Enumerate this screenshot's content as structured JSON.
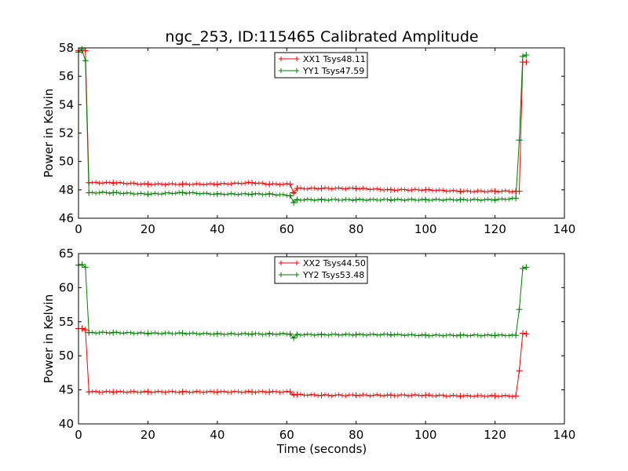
{
  "title": "ngc_253, ID:115465 Calibrated Amplitude",
  "xlabel": "Time (seconds)",
  "colors": {
    "xx": "#ff0000",
    "yy": "#008000"
  },
  "chart_data": [
    {
      "type": "line",
      "title": "ngc_253, ID:115465 Calibrated Amplitude",
      "xlabel": "",
      "ylabel": "Power in Kelvin",
      "xlim": [
        0,
        140
      ],
      "ylim": [
        46,
        58
      ],
      "xticks": [
        0,
        20,
        40,
        60,
        80,
        100,
        120,
        140
      ],
      "yticks": [
        46,
        48,
        50,
        52,
        54,
        56,
        58
      ],
      "grid": false,
      "legend": "top-center",
      "series": [
        {
          "name": "XX1 Tsys48.11",
          "color": "#ff0000",
          "x": [
            0,
            1,
            2,
            3,
            10,
            20,
            30,
            40,
            50,
            55,
            61,
            62,
            63,
            70,
            80,
            90,
            100,
            110,
            120,
            126,
            127,
            128,
            129
          ],
          "y": [
            57.8,
            57.8,
            57.8,
            48.5,
            48.5,
            48.4,
            48.4,
            48.4,
            48.5,
            48.4,
            48.4,
            47.8,
            48.1,
            48.1,
            48.1,
            48.0,
            48.0,
            47.9,
            47.9,
            47.9,
            47.9,
            57.0,
            57.0
          ]
        },
        {
          "name": "YY1 Tsys47.59",
          "color": "#008000",
          "x": [
            0,
            1,
            2,
            3,
            10,
            20,
            30,
            40,
            50,
            55,
            61,
            62,
            63,
            70,
            80,
            90,
            100,
            110,
            120,
            126,
            127,
            128,
            129
          ],
          "y": [
            57.7,
            57.9,
            57.1,
            47.8,
            47.8,
            47.7,
            47.8,
            47.7,
            47.7,
            47.7,
            47.6,
            47.1,
            47.3,
            47.3,
            47.3,
            47.3,
            47.3,
            47.3,
            47.3,
            47.4,
            51.5,
            57.4,
            57.5
          ]
        }
      ]
    },
    {
      "type": "line",
      "title": "",
      "xlabel": "Time (seconds)",
      "ylabel": "Power in Kelvin",
      "xlim": [
        0,
        140
      ],
      "ylim": [
        40,
        65
      ],
      "xticks": [
        0,
        20,
        40,
        60,
        80,
        100,
        120,
        140
      ],
      "yticks": [
        40,
        45,
        50,
        55,
        60,
        65
      ],
      "grid": false,
      "legend": "top-center",
      "series": [
        {
          "name": "XX2 Tsys44.50",
          "color": "#ff0000",
          "x": [
            0,
            1,
            2,
            3,
            10,
            20,
            30,
            40,
            50,
            55,
            61,
            62,
            63,
            70,
            80,
            90,
            100,
            110,
            120,
            126,
            127,
            128,
            129
          ],
          "y": [
            54.0,
            54.0,
            53.8,
            44.7,
            44.7,
            44.7,
            44.7,
            44.7,
            44.7,
            44.7,
            44.7,
            44.3,
            44.3,
            44.2,
            44.2,
            44.2,
            44.2,
            44.1,
            44.1,
            44.1,
            47.8,
            53.3,
            53.2
          ]
        },
        {
          "name": "YY2 Tsys53.48",
          "color": "#008000",
          "x": [
            0,
            1,
            2,
            3,
            10,
            20,
            30,
            40,
            50,
            55,
            61,
            62,
            63,
            70,
            80,
            90,
            100,
            110,
            120,
            126,
            127,
            128,
            129
          ],
          "y": [
            63.3,
            63.4,
            63.0,
            53.4,
            53.4,
            53.3,
            53.3,
            53.2,
            53.2,
            53.2,
            53.2,
            52.6,
            53.1,
            53.1,
            53.1,
            53.1,
            53.0,
            53.0,
            53.0,
            53.0,
            56.8,
            62.8,
            63.0
          ]
        }
      ]
    }
  ]
}
